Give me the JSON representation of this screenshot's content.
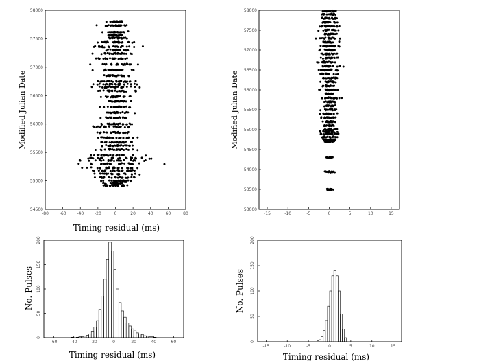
{
  "colors": {
    "ink": "#000000",
    "background": "#ffffff"
  },
  "chart_data": [
    {
      "id": "a",
      "type": "scatter",
      "xlabel": "Timing residual (ms)",
      "ylabel": "Modified Julian Date",
      "xlim": [
        -80,
        80
      ],
      "ylim": [
        54500,
        58000
      ],
      "xticks": [
        -80,
        -60,
        -40,
        -20,
        0,
        20,
        40,
        60,
        80
      ],
      "yticks": [
        54500,
        55000,
        55500,
        56000,
        56500,
        57000,
        57500,
        58000
      ],
      "epochs": [
        [
          57800,
          7
        ],
        [
          57730,
          9
        ],
        [
          57620,
          7
        ],
        [
          57560,
          6
        ],
        [
          57510,
          8
        ],
        [
          57440,
          10
        ],
        [
          57360,
          14
        ],
        [
          57300,
          12
        ],
        [
          57240,
          10
        ],
        [
          57150,
          12
        ],
        [
          57050,
          14
        ],
        [
          56950,
          11
        ],
        [
          56850,
          10
        ],
        [
          56750,
          12
        ],
        [
          56700,
          15
        ],
        [
          56650,
          13
        ],
        [
          56580,
          12
        ],
        [
          56480,
          10
        ],
        [
          56400,
          8
        ],
        [
          56300,
          10
        ],
        [
          56200,
          9
        ],
        [
          56110,
          9
        ],
        [
          56000,
          11
        ],
        [
          55950,
          16
        ],
        [
          55850,
          13
        ],
        [
          55760,
          12
        ],
        [
          55680,
          9
        ],
        [
          55620,
          11
        ],
        [
          55550,
          14
        ],
        [
          55450,
          13
        ],
        [
          55400,
          20
        ],
        [
          55360,
          18
        ],
        [
          55300,
          22
        ],
        [
          55230,
          18
        ],
        [
          55180,
          16
        ],
        [
          55120,
          14
        ],
        [
          55060,
          13
        ],
        [
          55000,
          11
        ],
        [
          54960,
          9
        ],
        [
          54920,
          8
        ]
      ]
    },
    {
      "id": "b",
      "type": "scatter",
      "xlabel": "",
      "ylabel": "Modified Julian Date",
      "xlim": [
        -17,
        17
      ],
      "ylim": [
        53000,
        58000
      ],
      "xticks": [
        -15,
        -10,
        -5,
        0,
        5,
        10,
        15
      ],
      "yticks": [
        53000,
        53500,
        54000,
        54500,
        55000,
        55500,
        56000,
        56500,
        57000,
        57500,
        58000
      ],
      "epochs": [
        [
          57980,
          1.3
        ],
        [
          57900,
          1.1
        ],
        [
          57800,
          1.2
        ],
        [
          57700,
          1.0
        ],
        [
          57600,
          1.4
        ],
        [
          57500,
          1.2
        ],
        [
          57400,
          1.0
        ],
        [
          57300,
          1.3
        ],
        [
          57200,
          1.1
        ],
        [
          57100,
          1.2
        ],
        [
          57000,
          1.2
        ],
        [
          56900,
          1.3
        ],
        [
          56800,
          1.3
        ],
        [
          56700,
          1.4
        ],
        [
          56600,
          1.3
        ],
        [
          56500,
          1.4
        ],
        [
          56400,
          1.3
        ],
        [
          56300,
          1.2
        ],
        [
          56200,
          1.2
        ],
        [
          56100,
          1.1
        ],
        [
          56000,
          1.1
        ],
        [
          55900,
          1.0
        ],
        [
          55800,
          1.1
        ],
        [
          55700,
          1.0
        ],
        [
          55600,
          0.9
        ],
        [
          55500,
          1.0
        ],
        [
          55400,
          1.0
        ],
        [
          55300,
          1.1
        ],
        [
          55200,
          0.9
        ],
        [
          55100,
          0.8
        ],
        [
          55000,
          0.9
        ],
        [
          54950,
          1.3
        ],
        [
          54900,
          1.2
        ],
        [
          54820,
          1.1
        ],
        [
          54750,
          1.0
        ],
        [
          54700,
          0.9
        ],
        [
          54300,
          0.6
        ],
        [
          53940,
          0.8
        ],
        [
          53500,
          0.5
        ]
      ]
    },
    {
      "id": "c",
      "type": "bar",
      "xlabel": "Timing residual (ms)",
      "ylabel": "No. Pulses",
      "xlim": [
        -70,
        70
      ],
      "ylim": [
        0,
        200
      ],
      "xticks": [
        -60,
        -40,
        -20,
        0,
        20,
        40,
        60
      ],
      "yticks": [
        0,
        50,
        100,
        150,
        200
      ],
      "bin_width": 2.5,
      "bin_start": -42.5,
      "counts": [
        1,
        0,
        1,
        2,
        2,
        3,
        5,
        8,
        12,
        22,
        35,
        58,
        85,
        120,
        160,
        196,
        178,
        140,
        100,
        72,
        55,
        42,
        30,
        24,
        18,
        14,
        10,
        8,
        6,
        4,
        3,
        2,
        2,
        1
      ]
    },
    {
      "id": "d",
      "type": "bar",
      "xlabel": "Timing residual (ms)",
      "ylabel": "No. Pulses",
      "xlim": [
        -17,
        17
      ],
      "ylim": [
        0,
        200
      ],
      "xticks": [
        -15,
        -10,
        -5,
        0,
        5,
        10,
        15
      ],
      "yticks": [
        0,
        50,
        100,
        150,
        200
      ],
      "bin_width": 0.5,
      "bin_start": -3.0,
      "counts": [
        2,
        4,
        10,
        22,
        42,
        70,
        100,
        130,
        140,
        130,
        100,
        55,
        25,
        8
      ]
    }
  ]
}
